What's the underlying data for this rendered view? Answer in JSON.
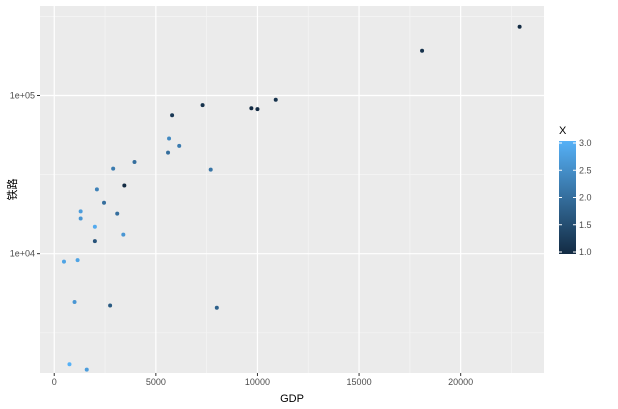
{
  "chart_data": {
    "type": "scatter",
    "xlabel": "GDP",
    "ylabel": "铁路",
    "y_scale": "log10",
    "xlim": [
      -700,
      24100
    ],
    "ylim": [
      1760,
      368000
    ],
    "x_ticks": [
      0,
      5000,
      10000,
      15000,
      20000
    ],
    "x_tick_labels": [
      "0",
      "5000",
      "10000",
      "15000",
      "20000"
    ],
    "y_ticks": [
      10000,
      100000
    ],
    "y_tick_labels": [
      "1e+04",
      "1e+05"
    ],
    "grid": true,
    "background": "#ebebeb",
    "legend": {
      "title": "X",
      "position": "right",
      "type": "colorbar",
      "range": [
        1.0,
        3.0
      ],
      "ticks": [
        1.0,
        1.5,
        2.0,
        2.5,
        3.0
      ],
      "tick_labels": [
        "1.0",
        "1.5",
        "2.0",
        "2.5",
        "3.0"
      ],
      "color_low": "#132b43",
      "color_high": "#56b1f7"
    },
    "points": [
      {
        "x": 22900,
        "y": 272000,
        "c": 1.0
      },
      {
        "x": 18100,
        "y": 192000,
        "c": 1.1
      },
      {
        "x": 10900,
        "y": 94000,
        "c": 1.1
      },
      {
        "x": 9700,
        "y": 83000,
        "c": 1.0
      },
      {
        "x": 10000,
        "y": 82000,
        "c": 1.0
      },
      {
        "x": 7300,
        "y": 87000,
        "c": 1.1
      },
      {
        "x": 5800,
        "y": 75000,
        "c": 1.2
      },
      {
        "x": 5650,
        "y": 53500,
        "c": 2.4
      },
      {
        "x": 6150,
        "y": 48000,
        "c": 2.2
      },
      {
        "x": 5600,
        "y": 43500,
        "c": 2.0
      },
      {
        "x": 3950,
        "y": 38000,
        "c": 2.0
      },
      {
        "x": 2900,
        "y": 34500,
        "c": 2.2
      },
      {
        "x": 7700,
        "y": 34000,
        "c": 2.1
      },
      {
        "x": 3450,
        "y": 27000,
        "c": 1.0
      },
      {
        "x": 2100,
        "y": 25500,
        "c": 2.3
      },
      {
        "x": 2450,
        "y": 21000,
        "c": 2.0
      },
      {
        "x": 1300,
        "y": 18500,
        "c": 2.7
      },
      {
        "x": 1300,
        "y": 16700,
        "c": 2.6
      },
      {
        "x": 3100,
        "y": 17900,
        "c": 2.0
      },
      {
        "x": 2000,
        "y": 14800,
        "c": 2.9
      },
      {
        "x": 3400,
        "y": 13200,
        "c": 2.6
      },
      {
        "x": 2000,
        "y": 12000,
        "c": 1.6
      },
      {
        "x": 1150,
        "y": 9100,
        "c": 2.8
      },
      {
        "x": 480,
        "y": 8900,
        "c": 2.8
      },
      {
        "x": 1000,
        "y": 4950,
        "c": 2.6
      },
      {
        "x": 2750,
        "y": 4700,
        "c": 1.7
      },
      {
        "x": 8000,
        "y": 4550,
        "c": 1.8
      },
      {
        "x": 750,
        "y": 2000,
        "c": 3.0
      },
      {
        "x": 1600,
        "y": 1850,
        "c": 2.7
      }
    ]
  }
}
